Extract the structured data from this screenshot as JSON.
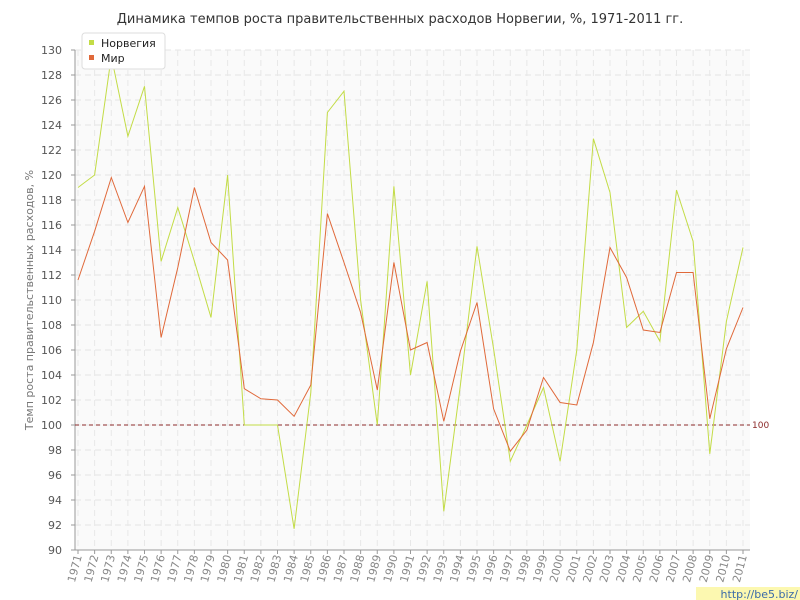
{
  "chart_data": {
    "type": "line",
    "title": "Динамика темпов роста правительственных расходов Норвегии, %, 1971-2011 гг.",
    "ylabel": "Темп роста правительственных расходов, %",
    "xlabel": "",
    "ylim": [
      90,
      130
    ],
    "yticks": [
      90,
      92,
      94,
      96,
      98,
      100,
      102,
      104,
      106,
      108,
      110,
      112,
      114,
      116,
      118,
      120,
      122,
      124,
      126,
      128,
      130
    ],
    "x": [
      "1971",
      "1972",
      "1973",
      "1974",
      "1975",
      "1976",
      "1977",
      "1978",
      "1979",
      "1980",
      "1981",
      "1982",
      "1983",
      "1984",
      "1985",
      "1986",
      "1987",
      "1988",
      "1989",
      "1990",
      "1991",
      "1992",
      "1993",
      "1994",
      "1995",
      "1996",
      "1997",
      "1998",
      "1999",
      "2000",
      "2001",
      "2002",
      "2003",
      "2004",
      "2005",
      "2006",
      "2007",
      "2008",
      "2009",
      "2010",
      "2011"
    ],
    "series": [
      {
        "name": "Норвегия",
        "color": "#c3dc46",
        "values": [
          119.0,
          120.0,
          129.5,
          123.1,
          127.1,
          113.1,
          117.4,
          113.1,
          108.6,
          120.0,
          100.0,
          100.0,
          100.0,
          91.7,
          102.6,
          125.0,
          126.7,
          110.0,
          100.0,
          119.1,
          104.0,
          111.5,
          93.1,
          103.2,
          114.3,
          106.1,
          97.1,
          100.0,
          103.0,
          97.1,
          106.0,
          122.9,
          118.6,
          107.8,
          109.1,
          106.7,
          118.8,
          114.7,
          97.7,
          108.3,
          114.2
        ]
      },
      {
        "name": "Мир",
        "color": "#e0693a",
        "values": [
          111.6,
          115.5,
          119.8,
          116.2,
          119.1,
          107.0,
          112.6,
          119.0,
          114.6,
          113.2,
          102.9,
          102.1,
          102.0,
          100.7,
          103.2,
          116.9,
          113.0,
          109.0,
          102.8,
          113.0,
          106.0,
          106.6,
          100.3,
          105.9,
          109.8,
          101.3,
          97.9,
          99.6,
          103.8,
          101.8,
          101.6,
          106.6,
          114.2,
          111.8,
          107.6,
          107.4,
          112.2,
          112.2,
          100.5,
          106.1,
          109.4
        ]
      }
    ],
    "reference_line": {
      "value": 100,
      "label": "100",
      "color": "#8c2a2a"
    },
    "legend": {
      "position": "top-left",
      "items": [
        "Норвегия",
        "Мир"
      ]
    },
    "grid": true
  },
  "watermark": {
    "text": "http://be5.biz/",
    "color": "#fcf8b0"
  }
}
